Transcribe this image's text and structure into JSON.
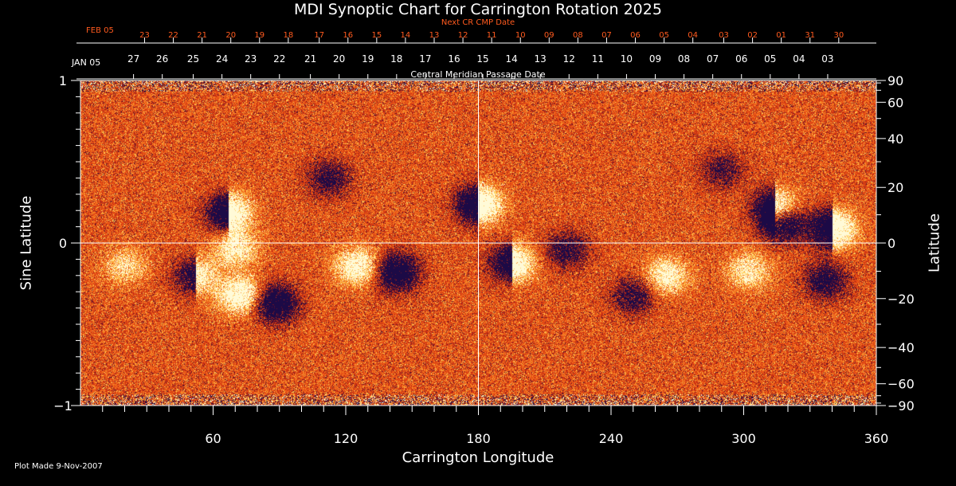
{
  "title": "MDI Synoptic Chart for Carrington Rotation 2025",
  "plot_made": "Plot Made  9-Nov-2007",
  "next_cr_caption": "Next CR CMP Date",
  "cmp_caption": "Central Meridian Passage Date",
  "colors": {
    "background": "#000000",
    "next_cr_text": "#ff5a1e",
    "axes": "#ffffff",
    "map_base": "#e8501a"
  },
  "chart_data": {
    "type": "heatmap",
    "title": "MDI Synoptic Chart for Carrington Rotation 2025",
    "xlabel": "Carrington Longitude",
    "ylabel_left": "Sine Latitude",
    "ylabel_right": "Latitude",
    "xlim": [
      0,
      360
    ],
    "ylim_sine": [
      -1,
      1
    ],
    "x_ticks": [
      60,
      120,
      180,
      240,
      300,
      360
    ],
    "y_left_ticks": [
      {
        "value": 1,
        "label": "1"
      },
      {
        "value": 0,
        "label": "0"
      },
      {
        "value": -1,
        "label": "−1"
      }
    ],
    "y_right_ticks": [
      {
        "lat": 90,
        "label": "90"
      },
      {
        "lat": 60,
        "label": "60"
      },
      {
        "lat": 40,
        "label": "40"
      },
      {
        "lat": 20,
        "label": "20"
      },
      {
        "lat": 0,
        "label": "0"
      },
      {
        "lat": -20,
        "label": "−20"
      },
      {
        "lat": -40,
        "label": "−40"
      },
      {
        "lat": -60,
        "label": "−60"
      },
      {
        "lat": -90,
        "label": "−90"
      }
    ],
    "reference_lines": {
      "longitude": 180,
      "sine_latitude": 0
    },
    "cmp_start_label": "JAN 05",
    "cmp_dates": [
      {
        "lon": 24,
        "label": "27"
      },
      {
        "lon": 37,
        "label": "26"
      },
      {
        "lon": 51,
        "label": "25"
      },
      {
        "lon": 64,
        "label": "24"
      },
      {
        "lon": 77,
        "label": "23"
      },
      {
        "lon": 90,
        "label": "22"
      },
      {
        "lon": 104,
        "label": "21"
      },
      {
        "lon": 117,
        "label": "20"
      },
      {
        "lon": 130,
        "label": "19"
      },
      {
        "lon": 143,
        "label": "18"
      },
      {
        "lon": 156,
        "label": "17"
      },
      {
        "lon": 169,
        "label": "16"
      },
      {
        "lon": 182,
        "label": "15"
      },
      {
        "lon": 195,
        "label": "14"
      },
      {
        "lon": 208,
        "label": "13"
      },
      {
        "lon": 221,
        "label": "12"
      },
      {
        "lon": 234,
        "label": "11"
      },
      {
        "lon": 247,
        "label": "10"
      },
      {
        "lon": 260,
        "label": "09"
      },
      {
        "lon": 273,
        "label": "08"
      },
      {
        "lon": 286,
        "label": "07"
      },
      {
        "lon": 299,
        "label": "06"
      },
      {
        "lon": 312,
        "label": "05"
      },
      {
        "lon": 325,
        "label": "04"
      },
      {
        "lon": 338,
        "label": "03"
      }
    ],
    "next_cr_start_label": "FEB 05",
    "next_cr_dates": [
      {
        "lon": 29,
        "label": "23"
      },
      {
        "lon": 42,
        "label": "22"
      },
      {
        "lon": 55,
        "label": "21"
      },
      {
        "lon": 68,
        "label": "20"
      },
      {
        "lon": 81,
        "label": "19"
      },
      {
        "lon": 94,
        "label": "18"
      },
      {
        "lon": 108,
        "label": "17"
      },
      {
        "lon": 121,
        "label": "16"
      },
      {
        "lon": 134,
        "label": "15"
      },
      {
        "lon": 147,
        "label": "14"
      },
      {
        "lon": 160,
        "label": "13"
      },
      {
        "lon": 173,
        "label": "12"
      },
      {
        "lon": 186,
        "label": "11"
      },
      {
        "lon": 199,
        "label": "10"
      },
      {
        "lon": 212,
        "label": "09"
      },
      {
        "lon": 225,
        "label": "08"
      },
      {
        "lon": 238,
        "label": "07"
      },
      {
        "lon": 251,
        "label": "06"
      },
      {
        "lon": 264,
        "label": "05"
      },
      {
        "lon": 277,
        "label": "04"
      },
      {
        "lon": 291,
        "label": "03"
      },
      {
        "lon": 304,
        "label": "02"
      },
      {
        "lon": 317,
        "label": "01"
      },
      {
        "lon": 330,
        "label": "31"
      },
      {
        "lon": 343,
        "label": "30"
      }
    ],
    "active_regions": [
      {
        "lon": 67,
        "sinlat": 0.19,
        "polarity": "mixed",
        "strength": 0.9
      },
      {
        "lon": 180,
        "sinlat": 0.24,
        "polarity": "mixed",
        "strength": 1.0
      },
      {
        "lon": 70,
        "sinlat": -0.03,
        "polarity": "positive",
        "strength": 0.6
      },
      {
        "lon": 52,
        "sinlat": -0.2,
        "polarity": "mixed",
        "strength": 0.6
      },
      {
        "lon": 72,
        "sinlat": -0.32,
        "polarity": "positive",
        "strength": 0.8
      },
      {
        "lon": 88,
        "sinlat": -0.37,
        "polarity": "negative",
        "strength": 0.9
      },
      {
        "lon": 125,
        "sinlat": -0.14,
        "polarity": "positive",
        "strength": 0.7
      },
      {
        "lon": 143,
        "sinlat": -0.18,
        "polarity": "negative",
        "strength": 0.9
      },
      {
        "lon": 195,
        "sinlat": -0.12,
        "polarity": "mixed",
        "strength": 0.8
      },
      {
        "lon": 220,
        "sinlat": -0.04,
        "polarity": "negative",
        "strength": 0.5
      },
      {
        "lon": 265,
        "sinlat": -0.2,
        "polarity": "positive",
        "strength": 0.6
      },
      {
        "lon": 250,
        "sinlat": -0.32,
        "polarity": "negative",
        "strength": 0.5
      },
      {
        "lon": 314,
        "sinlat": 0.22,
        "polarity": "mixed",
        "strength": 0.8
      },
      {
        "lon": 318,
        "sinlat": 0.12,
        "polarity": "negative",
        "strength": 0.8
      },
      {
        "lon": 340,
        "sinlat": 0.09,
        "polarity": "mixed",
        "strength": 1.0
      },
      {
        "lon": 337,
        "sinlat": -0.23,
        "polarity": "negative",
        "strength": 0.6
      },
      {
        "lon": 302,
        "sinlat": -0.17,
        "polarity": "positive",
        "strength": 0.5
      },
      {
        "lon": 20,
        "sinlat": -0.14,
        "polarity": "positive",
        "strength": 0.4
      },
      {
        "lon": 112,
        "sinlat": 0.4,
        "polarity": "negative",
        "strength": 0.5
      },
      {
        "lon": 290,
        "sinlat": 0.45,
        "polarity": "negative",
        "strength": 0.4
      }
    ]
  }
}
